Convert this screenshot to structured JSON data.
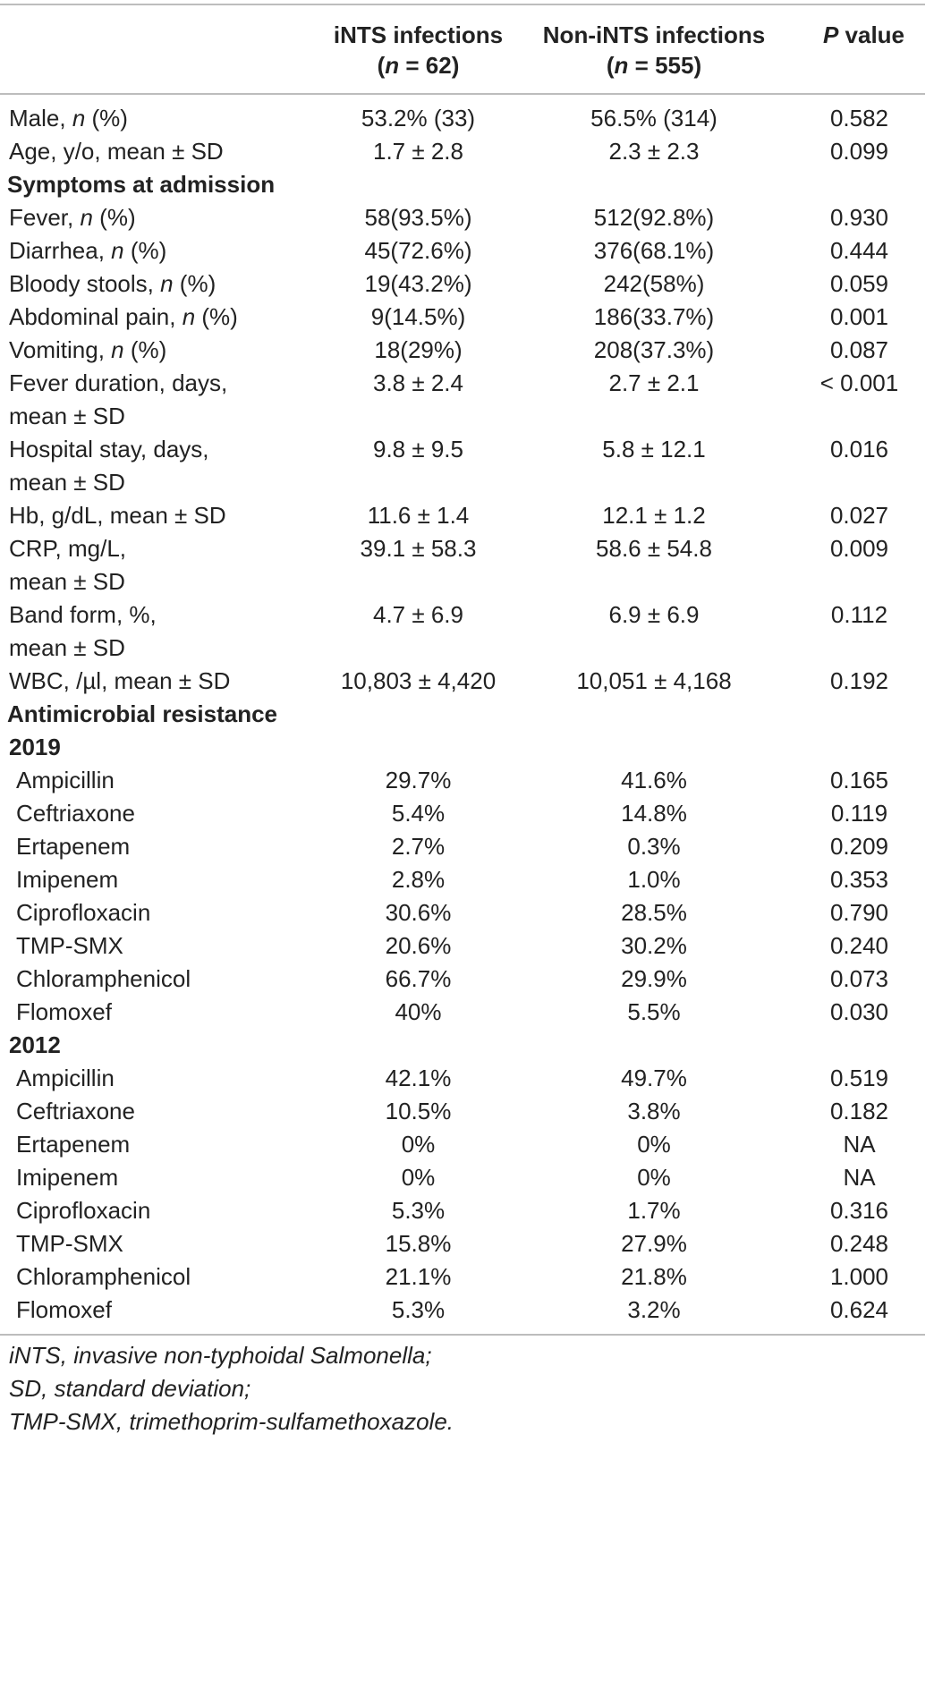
{
  "header": {
    "col2_line1": "iNTS infections",
    "col2_n_label": "n",
    "col2_n_value": " = 62)",
    "col3_line1": "Non-iNTS infections",
    "col3_n_label": "n",
    "col3_n_value": " = 555)",
    "col4_p": "P",
    "col4_rest": " value",
    "paren_open": "("
  },
  "rows_top": [
    {
      "pre": "Male, ",
      "italic": "n",
      "post": " (%)",
      "l2": "",
      "a": "53.2% (33)",
      "b": "56.5% (314)",
      "p": "0.582"
    },
    {
      "pre": "Age, y/o, mean ± SD",
      "italic": "",
      "post": "",
      "l2": "",
      "a": "1.7 ± 2.8",
      "b": "2.3 ± 2.3",
      "p": "0.099"
    }
  ],
  "section_symptoms": "Symptoms at admission",
  "rows_symptoms": [
    {
      "pre": "Fever, ",
      "italic": "n",
      "post": " (%)",
      "l2": "",
      "a": "58(93.5%)",
      "b": "512(92.8%)",
      "p": "0.930"
    },
    {
      "pre": "Diarrhea, ",
      "italic": "n",
      "post": " (%)",
      "l2": "",
      "a": "45(72.6%)",
      "b": "376(68.1%)",
      "p": "0.444"
    },
    {
      "pre": "Bloody stools, ",
      "italic": "n",
      "post": " (%)",
      "l2": "",
      "a": "19(43.2%)",
      "b": "242(58%)",
      "p": "0.059"
    },
    {
      "pre": "Abdominal pain, ",
      "italic": "n",
      "post": " (%)",
      "l2": "",
      "a": "9(14.5%)",
      "b": "186(33.7%)",
      "p": "0.001"
    },
    {
      "pre": "Vomiting, ",
      "italic": "n",
      "post": " (%)",
      "l2": "",
      "a": "18(29%)",
      "b": "208(37.3%)",
      "p": "0.087"
    },
    {
      "pre": "Fever duration, days,",
      "italic": "",
      "post": "",
      "l2": "mean ± SD",
      "a": "3.8 ± 2.4",
      "b": "2.7 ± 2.1",
      "p": "< 0.001"
    },
    {
      "pre": "Hospital stay, days,",
      "italic": "",
      "post": "",
      "l2": "mean ± SD",
      "a": "9.8 ± 9.5",
      "b": "5.8 ± 12.1",
      "p": "0.016"
    },
    {
      "pre": "Hb, g/dL, mean ± SD",
      "italic": "",
      "post": "",
      "l2": "",
      "a": "11.6 ± 1.4",
      "b": "12.1 ± 1.2",
      "p": "0.027"
    },
    {
      "pre": "CRP, mg/L,",
      "italic": "",
      "post": "",
      "l2": "mean ± SD",
      "a": "39.1 ± 58.3",
      "b": "58.6 ± 54.8",
      "p": "0.009"
    },
    {
      "pre": "Band form, %,",
      "italic": "",
      "post": "",
      "l2": "mean ± SD",
      "a": "4.7 ± 6.9",
      "b": "6.9 ± 6.9",
      "p": "0.112"
    },
    {
      "pre": "WBC, /µl, mean ± SD",
      "italic": "",
      "post": "",
      "l2": "",
      "a": "10,803 ± 4,420",
      "b": "10,051 ± 4,168",
      "p": "0.192"
    }
  ],
  "section_amr": "Antimicrobial resistance",
  "year_2019": "2019",
  "rows_2019": [
    {
      "drug": "Ampicillin",
      "a": "29.7%",
      "b": "41.6%",
      "p": "0.165"
    },
    {
      "drug": "Ceftriaxone",
      "a": "5.4%",
      "b": "14.8%",
      "p": "0.119"
    },
    {
      "drug": "Ertapenem",
      "a": "2.7%",
      "b": "0.3%",
      "p": "0.209"
    },
    {
      "drug": "Imipenem",
      "a": "2.8%",
      "b": "1.0%",
      "p": "0.353"
    },
    {
      "drug": "Ciprofloxacin",
      "a": "30.6%",
      "b": "28.5%",
      "p": "0.790"
    },
    {
      "drug": "TMP-SMX",
      "a": "20.6%",
      "b": "30.2%",
      "p": "0.240"
    },
    {
      "drug": "Chloramphenicol",
      "a": "66.7%",
      "b": "29.9%",
      "p": "0.073"
    },
    {
      "drug": "Flomoxef",
      "a": "40%",
      "b": "5.5%",
      "p": "0.030"
    }
  ],
  "year_2012": "2012",
  "rows_2012": [
    {
      "drug": "Ampicillin",
      "a": "42.1%",
      "b": "49.7%",
      "p": "0.519"
    },
    {
      "drug": "Ceftriaxone",
      "a": "10.5%",
      "b": "3.8%",
      "p": "0.182"
    },
    {
      "drug": "Ertapenem",
      "a": "0%",
      "b": "0%",
      "p": "NA"
    },
    {
      "drug": "Imipenem",
      "a": "0%",
      "b": "0%",
      "p": "NA"
    },
    {
      "drug": "Ciprofloxacin",
      "a": "5.3%",
      "b": "1.7%",
      "p": "0.316"
    },
    {
      "drug": "TMP-SMX",
      "a": "15.8%",
      "b": "27.9%",
      "p": "0.248"
    },
    {
      "drug": "Chloramphenicol",
      "a": "21.1%",
      "b": "21.8%",
      "p": "1.000"
    },
    {
      "drug": "Flomoxef",
      "a": "5.3%",
      "b": "3.2%",
      "p": "0.624"
    }
  ],
  "footnotes": [
    "iNTS, invasive non-typhoidal Salmonella;",
    "SD, standard deviation;",
    "TMP-SMX, trimethoprim-sulfamethoxazole."
  ]
}
